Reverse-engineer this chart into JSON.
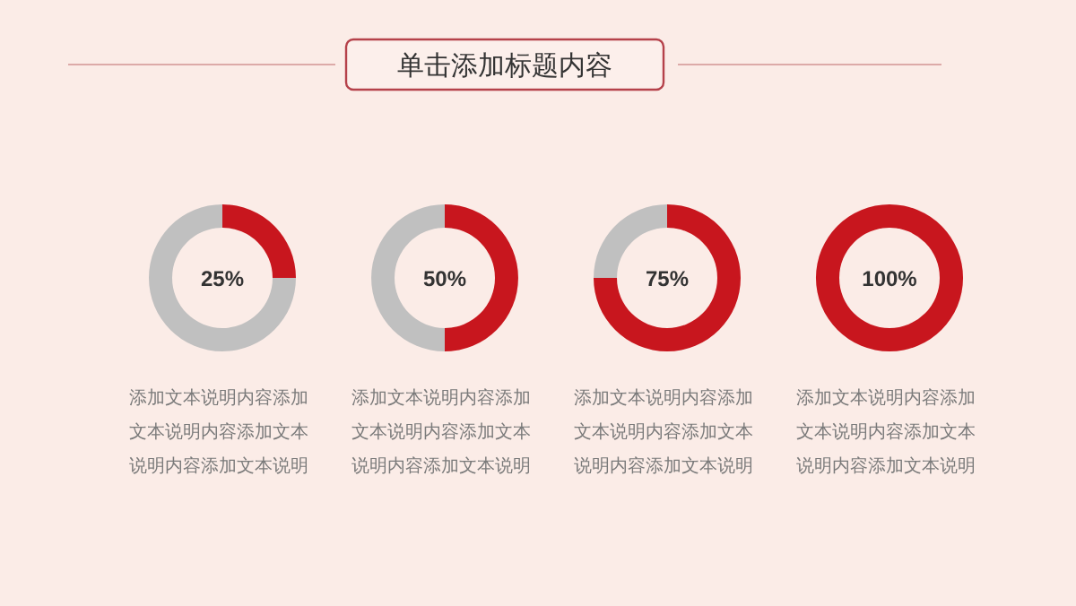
{
  "chart_data": [
    {
      "type": "donut",
      "title": "单击添加标题内容",
      "categories": [
        null,
        null
      ],
      "values": [
        25,
        75
      ],
      "colors": [
        "#c8161e",
        "#c0c0c0"
      ],
      "annotations": [
        "25%",
        "添加文本说明内容添加文本说明内容添加文本说明内容添加文本说明"
      ]
    },
    {
      "type": "donut",
      "categories": [
        null,
        null
      ],
      "values": [
        50,
        50
      ],
      "colors": [
        "#c8161e",
        "#c0c0c0"
      ],
      "annotations": [
        "50%",
        "添加文本说明内容添加文本说明内容添加文本说明内容添加文本说明"
      ]
    },
    {
      "type": "donut",
      "categories": [
        null,
        null
      ],
      "values": [
        75,
        25
      ],
      "colors": [
        "#c8161e",
        "#c0c0c0"
      ],
      "annotations": [
        "75%",
        "添加文本说明内容添加文本说明内容添加文本说明内容添加文本说明"
      ]
    },
    {
      "type": "donut",
      "categories": [
        null
      ],
      "values": [
        100
      ],
      "colors": [
        "#c8161e"
      ],
      "annotations": [
        "100%",
        "添加文本说明内容添加文本说明内容添加文本说明内容添加文本说明"
      ]
    }
  ]
}
